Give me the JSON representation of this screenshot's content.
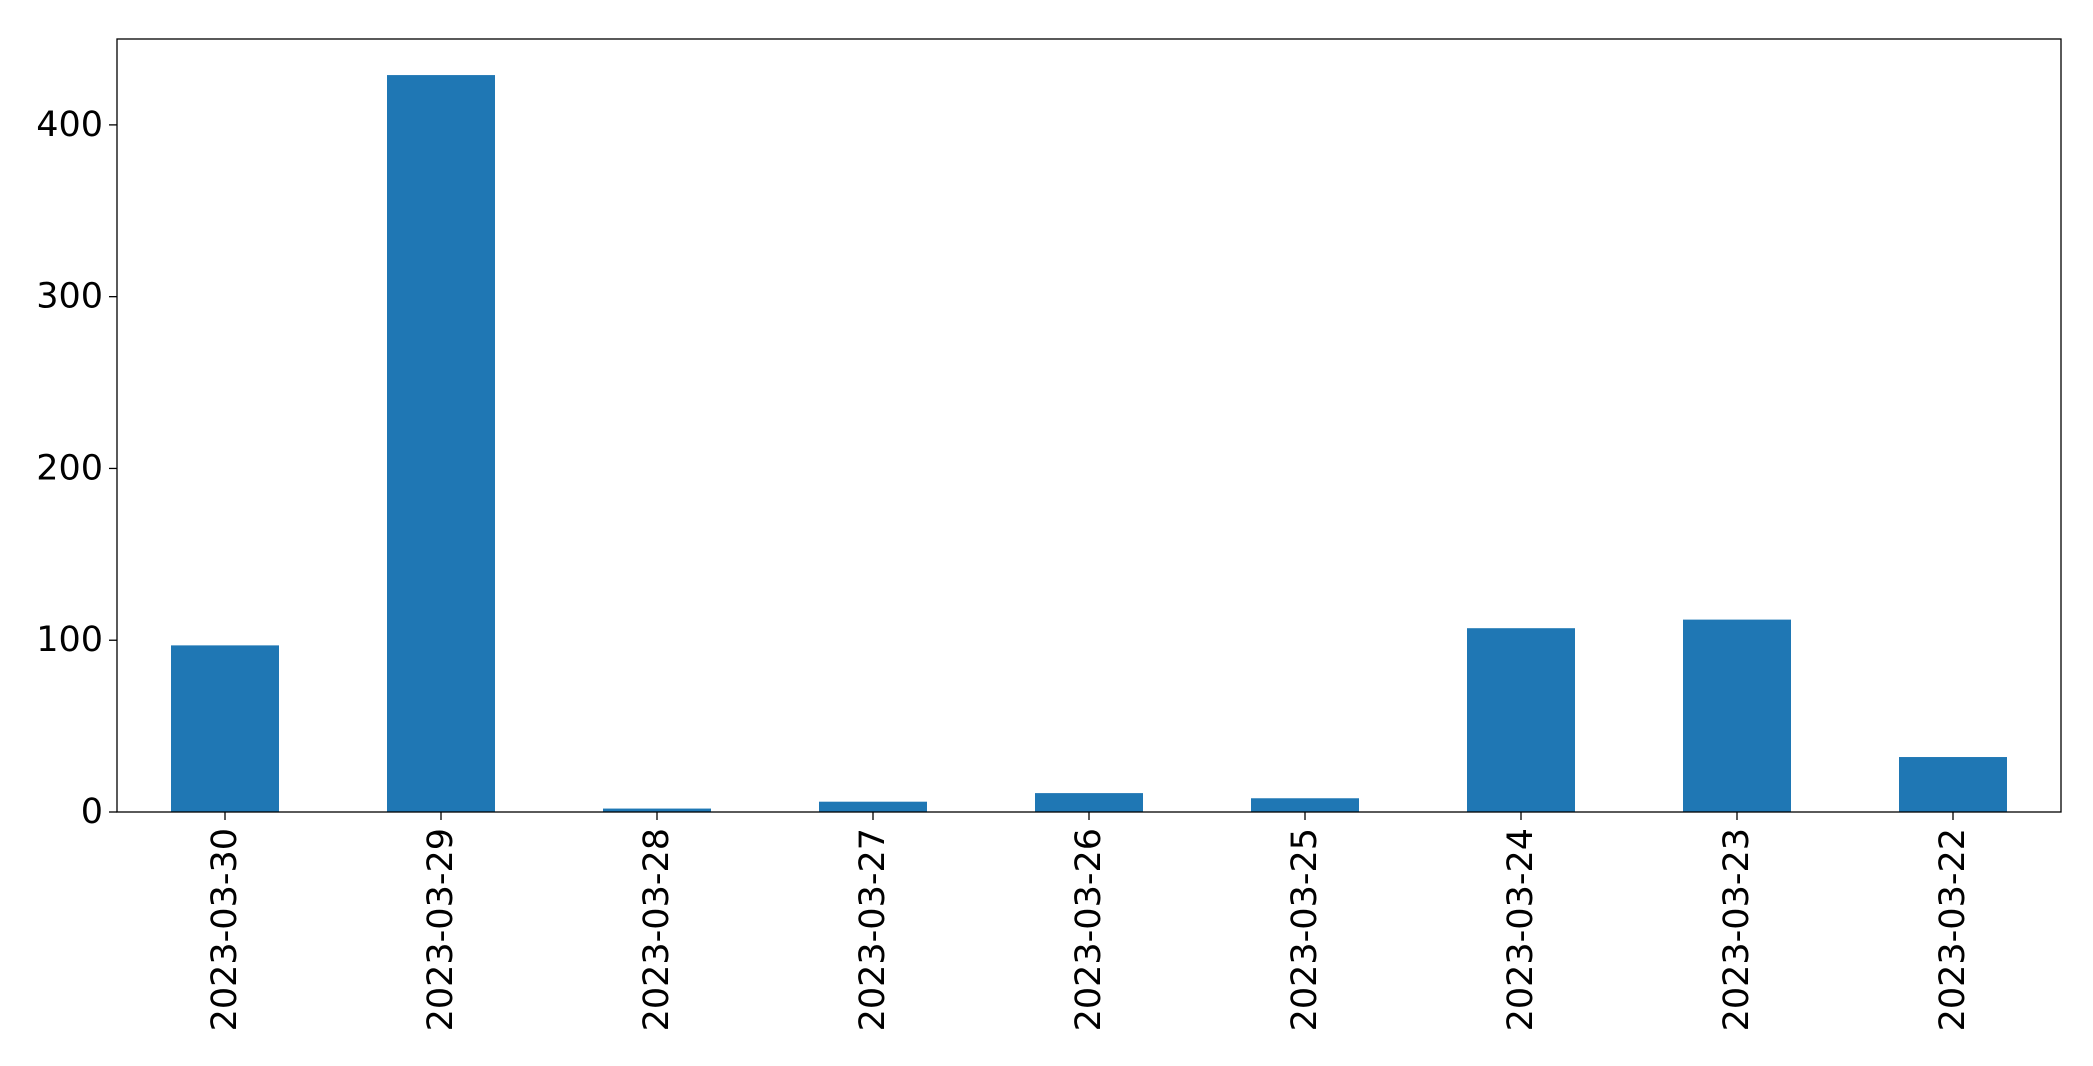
{
  "chart_data": {
    "type": "bar",
    "categories": [
      "2023-03-30",
      "2023-03-29",
      "2023-03-28",
      "2023-03-27",
      "2023-03-26",
      "2023-03-25",
      "2023-03-24",
      "2023-03-23",
      "2023-03-22"
    ],
    "values": [
      97,
      429,
      2,
      6,
      11,
      8,
      107,
      112,
      32
    ],
    "title": "",
    "xlabel": "",
    "ylabel": "",
    "ylim": [
      0,
      450
    ],
    "yticks": [
      0,
      100,
      200,
      300,
      400
    ],
    "grid": false,
    "colors": {
      "bar": "#1f77b4",
      "axes": "#000000",
      "background": "#ffffff"
    }
  }
}
